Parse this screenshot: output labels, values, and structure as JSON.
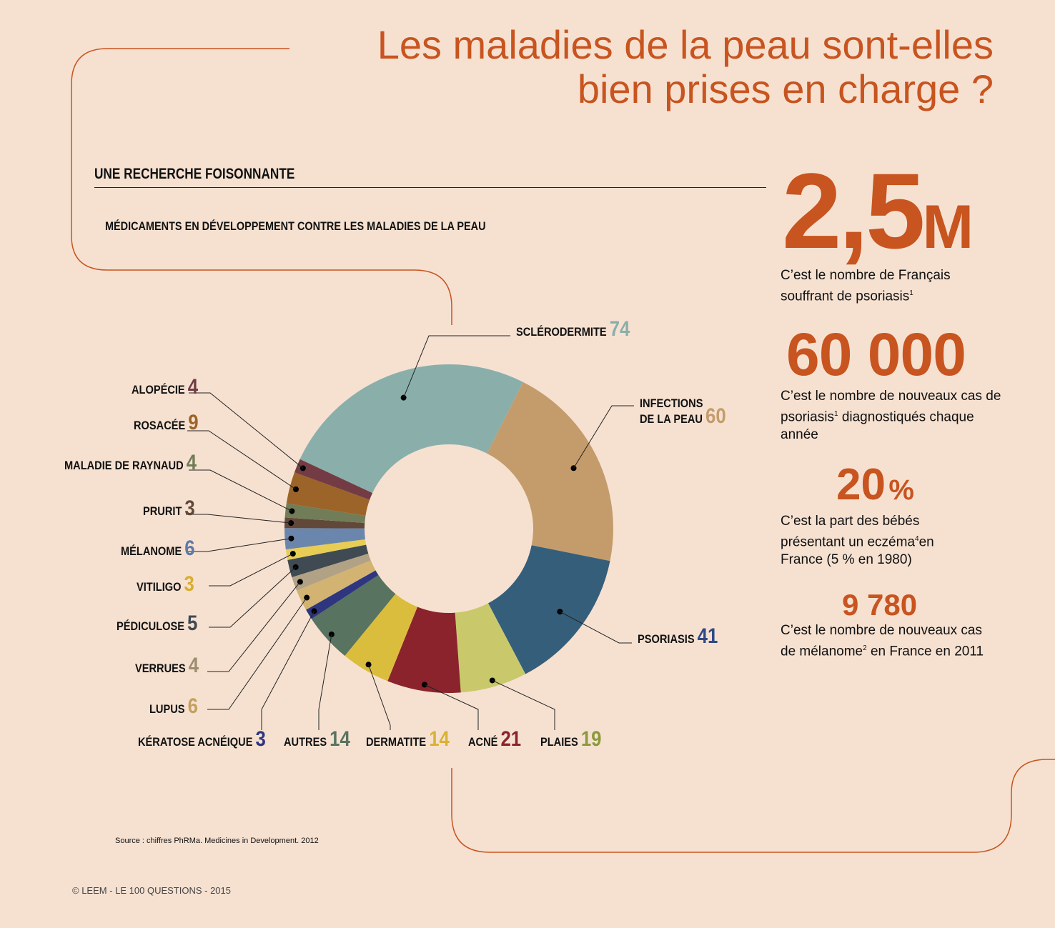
{
  "title_line1": "Les maladies de la peau sont-elles",
  "title_line2": "bien prises en charge ?",
  "section_heading": "UNE RECHERCHE FOISONNANTE",
  "chart_subtitle": "MÉDICAMENTS  EN DÉVELOPPEMENT CONTRE LES MALADIES  DE LA PEAU",
  "stats": [
    {
      "value": "2,5",
      "unit": "M",
      "text": "C’est le nombre de Français souffrant de psoriasis",
      "sup": "1"
    },
    {
      "value": "60 000",
      "text1": "C’est le nombre de nouveaux cas de psoriasis",
      "sup": "1",
      "text2": " diagnostiqués chaque année"
    },
    {
      "value": "20",
      "unit": "%",
      "text1": "C’est la part des bébés présentant un eczéma",
      "sup": "4",
      "text2": "en France (5 % en 1980)"
    },
    {
      "value": "9 780",
      "text1": "C’est le nombre de nouveaux cas de mélanome",
      "sup": "2",
      "text2": " en France en 2011"
    }
  ],
  "source": "Source : chiffres PhRMa. Medicines in Development. 2012",
  "footer": "© LEEM - LE 100 QUESTIONS - 2015",
  "chart_data": {
    "type": "pie",
    "donut": true,
    "segments": [
      {
        "label": "SCLÉRODERMITE",
        "value": 74,
        "color": "#8aafab",
        "num_color": "#8aafab"
      },
      {
        "label": "INFECTIONS DE LA PEAU",
        "value": 60,
        "color": "#c49c6c",
        "num_color": "#c49c6c"
      },
      {
        "label": "PSORIASIS",
        "value": 41,
        "color": "#355e7a",
        "num_color": "#2e4a86"
      },
      {
        "label": "PLAIES",
        "value": 19,
        "color": "#c9c96c",
        "num_color": "#8a9a3c"
      },
      {
        "label": "ACNÉ",
        "value": 21,
        "color": "#8b232d",
        "num_color": "#8b232d"
      },
      {
        "label": "DERMATITE",
        "value": 14,
        "color": "#dbbd3e",
        "num_color": "#dbb232"
      },
      {
        "label": "AUTRES",
        "value": 14,
        "color": "#58735f",
        "num_color": "#58735f"
      },
      {
        "label": "KÉRATOSE ACNÉIQUE",
        "value": 3,
        "color": "#2f3680",
        "num_color": "#2f3680"
      },
      {
        "label": "LUPUS",
        "value": 6,
        "color": "#d3b372",
        "num_color": "#c4a060"
      },
      {
        "label": "VERRUES",
        "value": 4,
        "color": "#b2a285",
        "num_color": "#9e8e70"
      },
      {
        "label": "PÉDICULOSE",
        "value": 5,
        "color": "#3f4a52",
        "num_color": "#3f4a52"
      },
      {
        "label": "VITILIGO",
        "value": 3,
        "color": "#e8cd55",
        "num_color": "#d8ae2c"
      },
      {
        "label": "MÉLANOME",
        "value": 6,
        "color": "#6b86ad",
        "num_color": "#5f7aa6"
      },
      {
        "label": "PRURIT",
        "value": 3,
        "color": "#624838",
        "num_color": "#624838"
      },
      {
        "label": "MALADIE DE RAYNAUD",
        "value": 4,
        "color": "#717d58",
        "num_color": "#717d58"
      },
      {
        "label": "ROSACÉE",
        "value": 9,
        "color": "#9c6428",
        "num_color": "#9c6428"
      },
      {
        "label": "ALOPÉCIE",
        "value": 4,
        "color": "#733c45",
        "num_color": "#733c45"
      }
    ]
  }
}
